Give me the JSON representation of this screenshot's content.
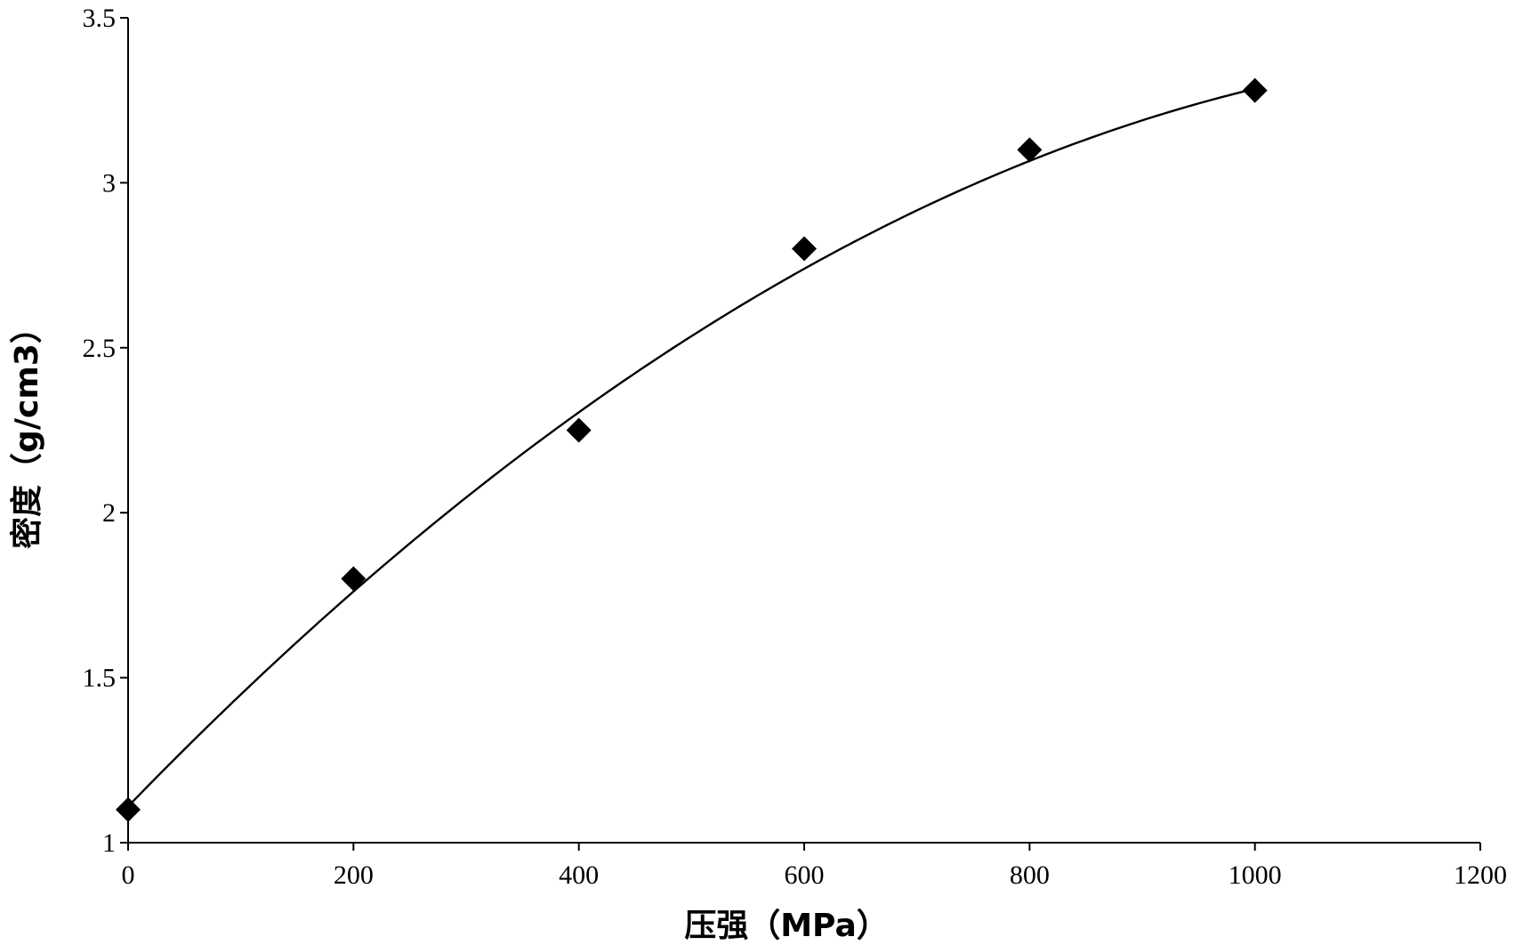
{
  "chart_data": {
    "type": "scatter",
    "xlabel": "压强（MPa）",
    "ylabel": "密度（g/cm3）",
    "xlim": [
      0,
      1200
    ],
    "ylim": [
      1,
      3.5
    ],
    "x_ticks": [
      0,
      200,
      400,
      600,
      800,
      1000,
      1200
    ],
    "y_ticks": [
      1,
      1.5,
      2,
      2.5,
      3,
      3.5
    ],
    "x_tick_labels": [
      "0",
      "200",
      "400",
      "600",
      "800",
      "1000",
      "1200"
    ],
    "y_tick_labels": [
      "1",
      "1.5",
      "2",
      "2.5",
      "3",
      "3.5"
    ],
    "grid": false,
    "legend": "none",
    "marker": "diamond",
    "series": [
      {
        "x": [
          0,
          200,
          400,
          600,
          800,
          1000
        ],
        "y": [
          1.1,
          1.8,
          2.25,
          2.8,
          3.1,
          3.28
        ]
      }
    ],
    "trendline": {
      "type": "polynomial",
      "x_range": [
        0,
        1000
      ],
      "coefficients": [
        1.11,
        0.003526,
        -1.351e-06
      ]
    },
    "colors": {
      "marker": "#000000",
      "line": "#000000",
      "axis": "#000000"
    }
  }
}
